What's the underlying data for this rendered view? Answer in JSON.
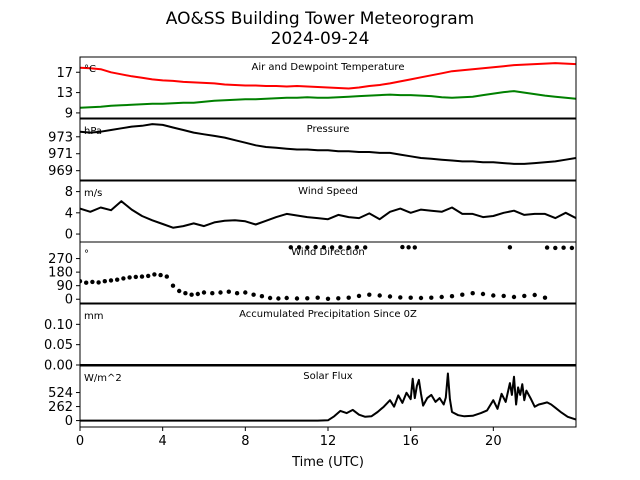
{
  "figure": {
    "title_line1": "AO&SS Building Tower Meteorogram",
    "title_line2": "2024-09-24",
    "xlabel": "Time (UTC)",
    "xticks": [
      0,
      4,
      8,
      12,
      16,
      20
    ],
    "xlim": [
      0,
      24
    ]
  },
  "chart_data": [
    {
      "type": "line",
      "title": "Air and Dewpoint Temperature",
      "unit": "°C",
      "ylim": [
        8,
        20
      ],
      "yticks": [
        9,
        13,
        17
      ],
      "series": [
        {
          "name": "",
          "color": "#ff0000",
          "x": [
            0,
            0.5,
            1,
            1.5,
            2,
            2.5,
            3,
            3.5,
            4,
            4.5,
            5,
            5.5,
            6,
            6.5,
            7,
            7.5,
            8,
            8.5,
            9,
            9.5,
            10,
            10.5,
            11,
            11.5,
            12,
            12.5,
            13,
            13.5,
            14,
            14.5,
            15,
            15.5,
            16,
            16.5,
            17,
            17.5,
            18,
            18.5,
            19,
            19.5,
            20,
            20.5,
            21,
            21.5,
            22,
            22.5,
            23,
            23.5,
            24
          ],
          "y": [
            17.9,
            17.8,
            17.6,
            17.0,
            16.6,
            16.2,
            15.9,
            15.6,
            15.4,
            15.3,
            15.1,
            15.0,
            14.9,
            14.8,
            14.6,
            14.5,
            14.4,
            14.4,
            14.3,
            14.3,
            14.2,
            14.3,
            14.2,
            14.1,
            14.0,
            13.9,
            13.8,
            14.0,
            14.3,
            14.5,
            14.8,
            15.2,
            15.6,
            16.0,
            16.4,
            16.8,
            17.2,
            17.4,
            17.6,
            17.8,
            18.0,
            18.2,
            18.4,
            18.5,
            18.6,
            18.7,
            18.8,
            18.7,
            18.6
          ]
        },
        {
          "name": "",
          "color": "#008000",
          "x": [
            0,
            0.5,
            1,
            1.5,
            2,
            2.5,
            3,
            3.5,
            4,
            4.5,
            5,
            5.5,
            6,
            6.5,
            7,
            7.5,
            8,
            8.5,
            9,
            9.5,
            10,
            10.5,
            11,
            11.5,
            12,
            12.5,
            13,
            13.5,
            14,
            14.5,
            15,
            15.5,
            16,
            16.5,
            17,
            17.5,
            18,
            18.5,
            19,
            19.5,
            20,
            20.5,
            21,
            21.5,
            22,
            22.5,
            23,
            23.5,
            24
          ],
          "y": [
            10.0,
            10.1,
            10.2,
            10.4,
            10.5,
            10.6,
            10.7,
            10.8,
            10.8,
            10.9,
            11.0,
            11.0,
            11.2,
            11.4,
            11.5,
            11.6,
            11.7,
            11.7,
            11.8,
            11.9,
            12.0,
            12.0,
            12.1,
            12.0,
            12.0,
            12.1,
            12.2,
            12.3,
            12.4,
            12.5,
            12.6,
            12.5,
            12.5,
            12.4,
            12.3,
            12.1,
            12.0,
            12.1,
            12.2,
            12.5,
            12.8,
            13.1,
            13.3,
            13.0,
            12.7,
            12.4,
            12.2,
            12.0,
            11.8
          ]
        }
      ]
    },
    {
      "type": "line",
      "title": "Pressure",
      "unit": "hPa",
      "ylim": [
        967.9,
        975.1
      ],
      "yticks": [
        969,
        971,
        973
      ],
      "series": [
        {
          "name": "",
          "color": "#000000",
          "x": [
            0,
            0.5,
            1,
            1.5,
            2,
            2.5,
            3,
            3.5,
            4,
            4.5,
            5,
            5.5,
            6,
            6.5,
            7,
            7.5,
            8,
            8.5,
            9,
            9.5,
            10,
            10.5,
            11,
            11.5,
            12,
            12.5,
            13,
            13.5,
            14,
            14.5,
            15,
            15.5,
            16,
            16.5,
            17,
            17.5,
            18,
            18.5,
            19,
            19.5,
            20,
            20.5,
            21,
            21.5,
            22,
            22.5,
            23,
            23.5,
            24
          ],
          "y": [
            973.6,
            973.5,
            973.6,
            973.8,
            974.0,
            974.2,
            974.3,
            974.5,
            974.4,
            974.1,
            973.8,
            973.5,
            973.3,
            973.1,
            972.9,
            972.6,
            972.3,
            972.0,
            971.8,
            971.7,
            971.6,
            971.5,
            971.5,
            971.4,
            971.4,
            971.3,
            971.3,
            971.2,
            971.2,
            971.1,
            971.1,
            970.9,
            970.7,
            970.5,
            970.4,
            970.3,
            970.2,
            970.1,
            970.1,
            970.0,
            970.0,
            969.9,
            969.8,
            969.8,
            969.9,
            970.0,
            970.1,
            970.3,
            970.5
          ]
        }
      ]
    },
    {
      "type": "line",
      "title": "Wind Speed",
      "unit": "m/s",
      "ylim": [
        -1.5,
        10
      ],
      "yticks": [
        0,
        4,
        8
      ],
      "series": [
        {
          "name": "",
          "color": "#000000",
          "x": [
            0,
            0.5,
            1,
            1.5,
            2,
            2.5,
            3,
            3.5,
            4,
            4.5,
            5,
            5.5,
            6,
            6.5,
            7,
            7.5,
            8,
            8.5,
            9,
            9.5,
            10,
            10.5,
            11,
            11.5,
            12,
            12.5,
            13,
            13.5,
            14,
            14.5,
            15,
            15.5,
            16,
            16.5,
            17,
            17.5,
            18,
            18.5,
            19,
            19.5,
            20,
            20.5,
            21,
            21.5,
            22,
            22.5,
            23,
            23.5,
            24
          ],
          "y": [
            4.8,
            4.2,
            5.0,
            4.5,
            6.2,
            4.6,
            3.4,
            2.6,
            1.9,
            1.2,
            1.5,
            2.0,
            1.5,
            2.2,
            2.5,
            2.6,
            2.4,
            1.8,
            2.5,
            3.2,
            3.8,
            3.5,
            3.2,
            3.0,
            2.8,
            3.6,
            3.2,
            3.0,
            3.9,
            2.8,
            4.2,
            4.8,
            4.0,
            4.6,
            4.4,
            4.2,
            5.0,
            3.8,
            3.8,
            3.2,
            3.4,
            4.0,
            4.4,
            3.6,
            3.8,
            3.8,
            3.0,
            4.0,
            3.0
          ]
        }
      ]
    },
    {
      "type": "scatter",
      "title": "Wind Direction",
      "unit": "°",
      "ylim": [
        -25,
        380
      ],
      "yticks": [
        0,
        90,
        180,
        270
      ],
      "series": [
        {
          "name": "",
          "color": "#000000",
          "x": [
            0,
            0.3,
            0.6,
            0.9,
            1.2,
            1.5,
            1.8,
            2.1,
            2.4,
            2.7,
            3.0,
            3.3,
            3.6,
            3.9,
            4.2,
            4.5,
            4.8,
            5.1,
            5.4,
            5.7,
            6.0,
            6.4,
            6.8,
            7.2,
            7.6,
            8.0,
            8.4,
            8.8,
            9.2,
            9.6,
            10.0,
            10.5,
            11.0,
            11.5,
            12.0,
            12.5,
            13.0,
            13.5,
            14.0,
            14.5,
            15.0,
            15.5,
            16.0,
            16.5,
            17.0,
            17.5,
            18.0,
            18.5,
            19.0,
            19.5,
            20.0,
            20.5,
            21.0,
            21.5,
            22.0,
            22.5,
            10.2,
            10.6,
            11.0,
            11.4,
            11.8,
            12.2,
            12.6,
            13.0,
            13.4,
            13.8,
            15.6,
            15.9,
            16.2,
            20.8,
            22.6,
            23.0,
            23.4,
            23.8
          ],
          "y": [
            120,
            110,
            115,
            112,
            120,
            125,
            130,
            138,
            145,
            148,
            150,
            155,
            165,
            160,
            150,
            90,
            55,
            40,
            30,
            35,
            45,
            40,
            45,
            50,
            40,
            45,
            30,
            20,
            8,
            5,
            8,
            5,
            6,
            10,
            3,
            6,
            10,
            22,
            30,
            25,
            18,
            12,
            10,
            8,
            10,
            15,
            20,
            30,
            40,
            35,
            25,
            22,
            15,
            22,
            28,
            10,
            345,
            345,
            344,
            346,
            345,
            344,
            345,
            343,
            345,
            344,
            346,
            345,
            344,
            345,
            343,
            341,
            342,
            341
          ]
        }
      ]
    },
    {
      "type": "line",
      "title": "Accumulated Precipitation Since 0Z",
      "unit": "mm",
      "ylim": [
        0,
        0.15
      ],
      "yticks": [
        0.0,
        0.05,
        0.1
      ],
      "ytick_labels": [
        "0.00",
        "0.05",
        "0.10"
      ],
      "series": [
        {
          "name": "",
          "color": "#000000",
          "x": [
            0,
            24
          ],
          "y": [
            0,
            0
          ]
        }
      ]
    },
    {
      "type": "line",
      "title": "Solar Flux",
      "unit": "W/m^2",
      "ylim": [
        -120,
        1020
      ],
      "yticks": [
        0,
        262,
        524
      ],
      "series": [
        {
          "name": "",
          "color": "#000000",
          "x": [
            0,
            2,
            4,
            6,
            8,
            10,
            11.5,
            12.0,
            12.3,
            12.6,
            12.9,
            13.2,
            13.5,
            13.8,
            14.1,
            14.4,
            14.7,
            15.0,
            15.2,
            15.4,
            15.6,
            15.8,
            16.0,
            16.1,
            16.2,
            16.3,
            16.4,
            16.5,
            16.6,
            16.8,
            17.0,
            17.2,
            17.4,
            17.6,
            17.7,
            17.8,
            17.9,
            18.0,
            18.3,
            18.6,
            19.0,
            19.4,
            19.7,
            20.0,
            20.2,
            20.4,
            20.6,
            20.8,
            20.9,
            21.0,
            21.1,
            21.2,
            21.3,
            21.4,
            21.5,
            21.6,
            21.8,
            22.0,
            22.2,
            22.4,
            22.6,
            22.8,
            23.0,
            23.3,
            23.6,
            24
          ],
          "y": [
            0,
            0,
            0,
            0,
            0,
            0,
            0,
            5,
            80,
            180,
            140,
            200,
            110,
            70,
            80,
            160,
            260,
            380,
            260,
            470,
            330,
            520,
            400,
            780,
            420,
            650,
            760,
            500,
            280,
            420,
            480,
            350,
            420,
            300,
            430,
            880,
            400,
            160,
            100,
            80,
            90,
            140,
            190,
            380,
            220,
            500,
            350,
            700,
            480,
            820,
            300,
            620,
            480,
            680,
            380,
            560,
            420,
            260,
            300,
            320,
            340,
            300,
            240,
            150,
            70,
            20
          ]
        }
      ]
    }
  ]
}
